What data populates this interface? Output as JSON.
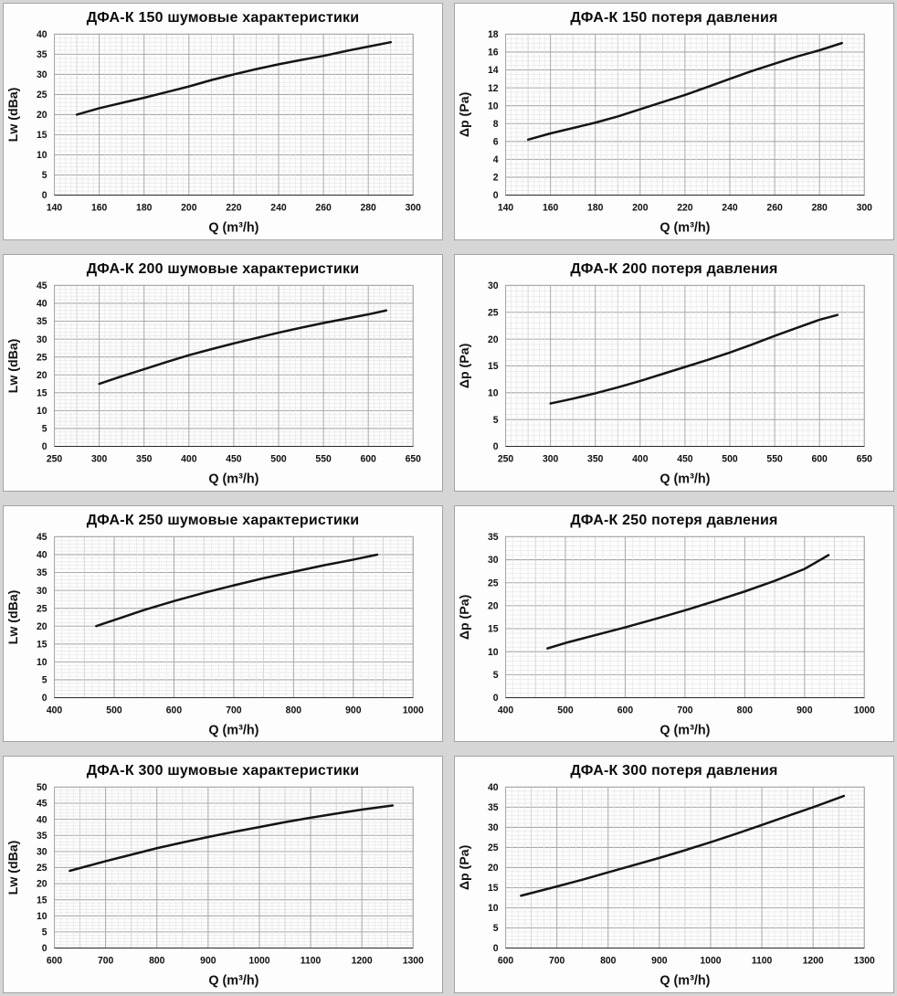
{
  "colors": {
    "page_bg": "#d6d6d6",
    "panel_bg": "#fdfdfd",
    "panel_border": "#a3a3a3",
    "grid_minor": "#e4e4e4",
    "grid_medium": "#cdcdcd",
    "grid_major": "#a8a8a8",
    "axis": "#2a2a2a",
    "curve": "#141414",
    "text": "#111111"
  },
  "chart_data": [
    {
      "type": "line",
      "title": "ДФА-К 150 шумовые характеристики",
      "xlabel": "Q (m³/h)",
      "ylabel": "Lw (dBa)",
      "xlim": [
        140,
        300
      ],
      "xstep": 20,
      "x_minor_div": 8,
      "ylim": [
        0,
        40
      ],
      "ystep": 5,
      "y_minor_div": 5,
      "grid": true,
      "legend": false,
      "x": [
        150,
        160,
        170,
        180,
        190,
        200,
        210,
        220,
        230,
        240,
        250,
        260,
        270,
        280,
        290
      ],
      "y": [
        20,
        21.6,
        22.9,
        24.2,
        25.6,
        27,
        28.6,
        30,
        31.3,
        32.5,
        33.6,
        34.6,
        35.8,
        36.9,
        38
      ]
    },
    {
      "type": "line",
      "title": "ДФА-К 150 потеря давления",
      "xlabel": "Q (m³/h)",
      "ylabel": "Δp (Pa)",
      "xlim": [
        140,
        300
      ],
      "xstep": 20,
      "x_minor_div": 8,
      "ylim": [
        0,
        18
      ],
      "ystep": 2,
      "y_minor_div": 4,
      "grid": true,
      "legend": false,
      "x": [
        150,
        160,
        170,
        180,
        190,
        200,
        210,
        220,
        230,
        240,
        250,
        260,
        270,
        280,
        290
      ],
      "y": [
        6.2,
        6.9,
        7.5,
        8.1,
        8.8,
        9.6,
        10.4,
        11.2,
        12.1,
        13,
        13.9,
        14.7,
        15.5,
        16.2,
        17
      ]
    },
    {
      "type": "line",
      "title": "ДФА-К 200 шумовые характеристики",
      "xlabel": "Q (m³/h)",
      "ylabel": "Lw (dBa)",
      "xlim": [
        250,
        650
      ],
      "xstep": 50,
      "x_minor_div": 8,
      "ylim": [
        0,
        45
      ],
      "ystep": 5,
      "y_minor_div": 5,
      "grid": true,
      "legend": false,
      "x": [
        300,
        325,
        350,
        375,
        400,
        425,
        450,
        475,
        500,
        525,
        550,
        575,
        600,
        620
      ],
      "y": [
        17.5,
        19.6,
        21.6,
        23.6,
        25.5,
        27.2,
        28.8,
        30.3,
        31.8,
        33.2,
        34.5,
        35.7,
        36.9,
        38
      ]
    },
    {
      "type": "line",
      "title": "ДФА-К 200 потеря давления",
      "xlabel": "Q (m³/h)",
      "ylabel": "Δp (Pa)",
      "xlim": [
        250,
        650
      ],
      "xstep": 50,
      "x_minor_div": 8,
      "ylim": [
        0,
        30
      ],
      "ystep": 5,
      "y_minor_div": 5,
      "grid": true,
      "legend": false,
      "x": [
        300,
        325,
        350,
        375,
        400,
        425,
        450,
        475,
        500,
        525,
        550,
        575,
        600,
        620
      ],
      "y": [
        8,
        8.9,
        9.9,
        11,
        12.2,
        13.5,
        14.8,
        16.1,
        17.5,
        19,
        20.6,
        22.1,
        23.6,
        24.5
      ]
    },
    {
      "type": "line",
      "title": "ДФА-К 250 шумовые характеристики",
      "xlabel": "Q (m³/h)",
      "ylabel": "Lw (dBa)",
      "xlim": [
        400,
        1000
      ],
      "xstep": 100,
      "x_minor_div": 8,
      "ylim": [
        0,
        45
      ],
      "ystep": 5,
      "y_minor_div": 5,
      "grid": true,
      "legend": false,
      "x": [
        470,
        500,
        550,
        600,
        650,
        700,
        750,
        800,
        850,
        900,
        940
      ],
      "y": [
        20,
        21.7,
        24.5,
        27,
        29.3,
        31.4,
        33.4,
        35.2,
        37,
        38.6,
        40
      ]
    },
    {
      "type": "line",
      "title": "ДФА-К 250 потеря давления",
      "xlabel": "Q (m³/h)",
      "ylabel": "Δp (Pa)",
      "xlim": [
        400,
        1000
      ],
      "xstep": 100,
      "x_minor_div": 8,
      "ylim": [
        0,
        35
      ],
      "ystep": 5,
      "y_minor_div": 5,
      "grid": true,
      "legend": false,
      "x": [
        470,
        500,
        550,
        600,
        650,
        700,
        750,
        800,
        850,
        900,
        940
      ],
      "y": [
        10.7,
        11.9,
        13.6,
        15.3,
        17.1,
        19,
        21,
        23.1,
        25.4,
        28,
        31
      ]
    },
    {
      "type": "line",
      "title": "ДФА-К 300 шумовые характеристики",
      "xlabel": "Q (m³/h)",
      "ylabel": "Lw (dBa)",
      "xlim": [
        600,
        1300
      ],
      "xstep": 100,
      "x_minor_div": 8,
      "ylim": [
        0,
        50
      ],
      "ystep": 5,
      "y_minor_div": 5,
      "grid": true,
      "legend": false,
      "x": [
        630,
        700,
        750,
        800,
        850,
        900,
        950,
        1000,
        1050,
        1100,
        1150,
        1200,
        1260
      ],
      "y": [
        24,
        27,
        29,
        31,
        32.8,
        34.5,
        36.1,
        37.6,
        39.1,
        40.5,
        41.8,
        43,
        44.3
      ]
    },
    {
      "type": "line",
      "title": "ДФА-К 300 потеря давления",
      "xlabel": "Q (m³/h)",
      "ylabel": "Δp (Pa)",
      "xlim": [
        600,
        1300
      ],
      "xstep": 100,
      "x_minor_div": 8,
      "ylim": [
        0,
        40
      ],
      "ystep": 5,
      "y_minor_div": 5,
      "grid": true,
      "legend": false,
      "x": [
        630,
        700,
        750,
        800,
        850,
        900,
        950,
        1000,
        1050,
        1100,
        1150,
        1200,
        1260
      ],
      "y": [
        13,
        15.3,
        17,
        18.8,
        20.6,
        22.4,
        24.3,
        26.3,
        28.4,
        30.6,
        32.8,
        35,
        37.8
      ]
    }
  ]
}
